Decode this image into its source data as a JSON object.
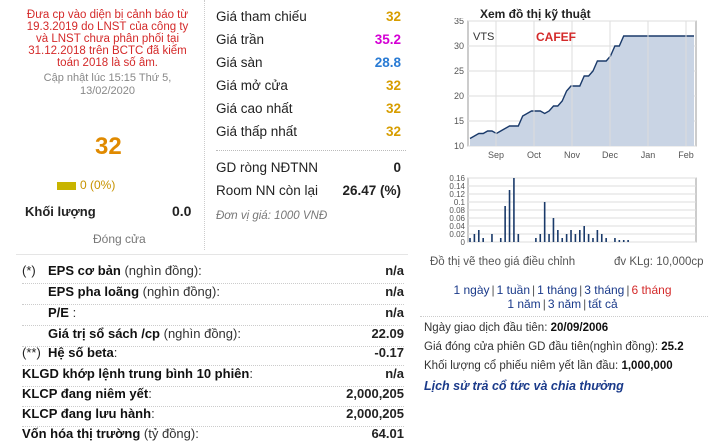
{
  "left": {
    "warning": "Đưa cp vào diện bị cảnh báo từ 19.3.2019 do LNST của công ty và LNST chưa phân phối tại 31.12.2018 trên BCTC đã kiểm toán 2018 là số âm.",
    "updated": "Cập nhật lúc 15:15 Thứ 5, 13/02/2020",
    "price": "32",
    "change": "0 (0%)",
    "volume_label": "Khối lượng",
    "volume_value": "0.0",
    "close_label": "Đóng cửa"
  },
  "prices": [
    {
      "label": "Giá tham chiếu",
      "value": "32"
    },
    {
      "label": "Giá trần",
      "value": "35.2"
    },
    {
      "label": "Giá sàn",
      "value": "28.8"
    },
    {
      "label": "Giá mở cửa",
      "value": "32"
    },
    {
      "label": "Giá cao nhất",
      "value": "32"
    },
    {
      "label": "Giá thấp nhất",
      "value": "32"
    }
  ],
  "foreign": [
    {
      "label": "GD ròng NĐTNN",
      "value": "0"
    },
    {
      "label": "Room NN còn lại",
      "value": "26.47 (%)"
    }
  ],
  "unit_note": "Đơn vị giá: 1000 VNĐ",
  "financials": [
    {
      "mark": "(*)",
      "label_bold": "EPS cơ bản",
      "label_normal": " (nghìn đồng):",
      "value": "n/a"
    },
    {
      "mark": "",
      "label_bold": "EPS pha loãng",
      "label_normal": " (nghìn đồng):",
      "value": "n/a"
    },
    {
      "mark": "",
      "label_bold": "P/E",
      "label_normal": " :",
      "value": "n/a"
    },
    {
      "mark": "",
      "label_bold": "Giá trị sổ sách /cp",
      "label_normal": " (nghìn đồng):",
      "value": "22.09"
    },
    {
      "mark": "(**)",
      "label_bold": "Hệ số beta",
      "label_normal": ":",
      "value": "-0.17"
    },
    {
      "mark": "",
      "label_bold": "KLGD khớp lệnh trung bình 10 phiên",
      "label_normal": ":",
      "value": "n/a"
    },
    {
      "mark": "",
      "label_bold": "KLCP đang niêm yết",
      "label_normal": ":",
      "value": "2,000,205"
    },
    {
      "mark": "",
      "label_bold": "KLCP đang lưu hành",
      "label_normal": ":",
      "value": "2,000,205"
    },
    {
      "mark": "",
      "label_bold": "Vốn hóa thị trường",
      "label_normal": " (tỷ đồng):",
      "value": "64.01"
    }
  ],
  "chart": {
    "title": "Xem đồ thị kỹ thuật",
    "ticker": "VTS",
    "watermark": "CAFEF",
    "adj_note": "Đồ thị vẽ theo giá điều chỉnh",
    "unit_note": "đv KLg: 10,000cp",
    "colors": {
      "line": "#1a3a6a",
      "area": "#c9d4e4",
      "volume": "#1a3a6a",
      "grid": "#dddddd",
      "watermark": "#d42a2a"
    }
  },
  "chart_data": [
    {
      "type": "area",
      "series": [
        {
          "values": [
            11.5,
            12,
            12.5,
            12.5,
            13,
            13,
            12.5,
            13,
            13.5,
            14,
            14,
            14,
            16,
            16.5,
            17,
            17,
            17,
            16.5,
            17,
            18,
            18,
            19,
            21,
            22,
            22,
            22,
            24,
            24,
            25,
            27,
            27,
            27,
            28,
            30,
            30,
            32,
            32,
            32,
            32,
            32,
            32,
            32,
            32,
            32,
            32,
            32,
            32,
            32,
            32,
            32,
            32,
            32
          ]
        }
      ],
      "x_ticks": [
        "Sep",
        "Oct",
        "Nov",
        "Dec",
        "Jan",
        "Feb"
      ],
      "y_ticks": [
        "10",
        "15",
        "20",
        "25",
        "30",
        "35"
      ],
      "ylim": [
        10,
        35
      ],
      "grid": true
    },
    {
      "type": "bar",
      "series": [
        {
          "values": [
            0.01,
            0.02,
            0.03,
            0.01,
            0,
            0.02,
            0,
            0.01,
            0.09,
            0.13,
            0.16,
            0.02,
            0,
            0,
            0,
            0.01,
            0.02,
            0.1,
            0.02,
            0.06,
            0.03,
            0.01,
            0.02,
            0.03,
            0.02,
            0.03,
            0.04,
            0.02,
            0.01,
            0.03,
            0.02,
            0.01,
            0,
            0.01,
            0.005,
            0.005,
            0.005,
            0,
            0,
            0,
            0,
            0,
            0,
            0,
            0,
            0,
            0,
            0,
            0,
            0,
            0,
            0
          ]
        }
      ],
      "y_ticks": [
        "0",
        "0.02",
        "0.04",
        "0.06",
        "0.08",
        "0.1",
        "0.12",
        "0.14",
        "0.16"
      ],
      "ylim": [
        0,
        0.16
      ],
      "grid": true
    }
  ],
  "periods_row1": [
    "1 ngày",
    "1 tuần",
    "1 tháng",
    "3 tháng",
    "6 tháng"
  ],
  "periods_row2": [
    "1 năm",
    "3 năm",
    "tất cả"
  ],
  "active_period": "6 tháng",
  "info": {
    "first_day_label": "Ngày giao dịch đầu tiên: ",
    "first_day_value": "20/09/2006",
    "first_close_label": "Giá đóng cửa phiên GD đầu tiên(nghìn đồng): ",
    "first_close_value": "25.2",
    "first_volume_label": "Khối lượng cổ phiếu niêm yết lần đầu: ",
    "first_volume_value": "1,000,000",
    "history_link": "Lịch sử trả cổ tức và chia thưởng"
  }
}
